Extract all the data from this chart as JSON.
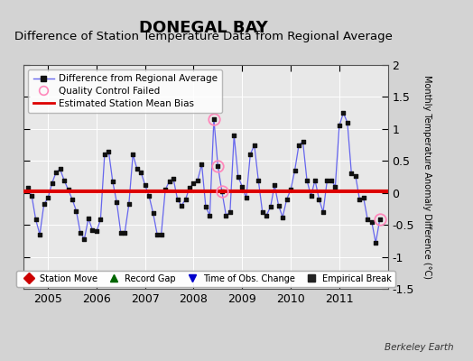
{
  "title": "DONEGAL BAY",
  "subtitle": "Difference of Station Temperature Data from Regional Average",
  "ylabel": "Monthly Temperature Anomaly Difference (°C)",
  "bias": 0.02,
  "ylim": [
    -1.5,
    2.0
  ],
  "yticks": [
    -1.5,
    -1.0,
    -0.5,
    0.0,
    0.5,
    1.0,
    1.5,
    2.0
  ],
  "ytick_labels": [
    "-1.5",
    "-1",
    "-0.5",
    "0",
    "0.5",
    "1",
    "1.5",
    "2"
  ],
  "xlim": [
    2004.5,
    2012.0
  ],
  "xticks": [
    2005,
    2006,
    2007,
    2008,
    2009,
    2010,
    2011
  ],
  "background_color": "#e8e8e8",
  "fig_background_color": "#d3d3d3",
  "line_color": "#6666ee",
  "marker_color": "#111111",
  "bias_color": "#dd0000",
  "qc_color": "#ff88bb",
  "title_fontsize": 13,
  "subtitle_fontsize": 9.5,
  "ylabel_fontsize": 7,
  "tick_fontsize": 9,
  "watermark": "Berkeley Earth",
  "data": [
    [
      2004.583,
      0.08
    ],
    [
      2004.667,
      -0.05
    ],
    [
      2004.75,
      -0.42
    ],
    [
      2004.833,
      -0.65
    ],
    [
      2004.917,
      -0.18
    ],
    [
      2005.0,
      -0.08
    ],
    [
      2005.083,
      0.15
    ],
    [
      2005.167,
      0.32
    ],
    [
      2005.25,
      0.37
    ],
    [
      2005.333,
      0.2
    ],
    [
      2005.417,
      0.05
    ],
    [
      2005.5,
      -0.1
    ],
    [
      2005.583,
      -0.28
    ],
    [
      2005.667,
      -0.62
    ],
    [
      2005.75,
      -0.72
    ],
    [
      2005.833,
      -0.4
    ],
    [
      2005.917,
      -0.58
    ],
    [
      2006.0,
      -0.6
    ],
    [
      2006.083,
      -0.42
    ],
    [
      2006.167,
      0.6
    ],
    [
      2006.25,
      0.65
    ],
    [
      2006.333,
      0.18
    ],
    [
      2006.417,
      -0.15
    ],
    [
      2006.5,
      -0.62
    ],
    [
      2006.583,
      -0.62
    ],
    [
      2006.667,
      -0.18
    ],
    [
      2006.75,
      0.6
    ],
    [
      2006.833,
      0.38
    ],
    [
      2006.917,
      0.32
    ],
    [
      2007.0,
      0.12
    ],
    [
      2007.083,
      -0.05
    ],
    [
      2007.167,
      -0.32
    ],
    [
      2007.25,
      -0.65
    ],
    [
      2007.333,
      -0.65
    ],
    [
      2007.417,
      0.05
    ],
    [
      2007.5,
      0.18
    ],
    [
      2007.583,
      0.22
    ],
    [
      2007.667,
      -0.1
    ],
    [
      2007.75,
      -0.2
    ],
    [
      2007.833,
      -0.1
    ],
    [
      2007.917,
      0.08
    ],
    [
      2008.0,
      0.15
    ],
    [
      2008.083,
      0.2
    ],
    [
      2008.167,
      0.45
    ],
    [
      2008.25,
      -0.22
    ],
    [
      2008.333,
      -0.35
    ],
    [
      2008.417,
      1.15
    ],
    [
      2008.5,
      0.42
    ],
    [
      2008.583,
      0.02
    ],
    [
      2008.667,
      -0.35
    ],
    [
      2008.75,
      -0.3
    ],
    [
      2008.833,
      0.9
    ],
    [
      2008.917,
      0.25
    ],
    [
      2009.0,
      0.1
    ],
    [
      2009.083,
      -0.08
    ],
    [
      2009.167,
      0.6
    ],
    [
      2009.25,
      0.75
    ],
    [
      2009.333,
      0.2
    ],
    [
      2009.417,
      -0.3
    ],
    [
      2009.5,
      -0.35
    ],
    [
      2009.583,
      -0.22
    ],
    [
      2009.667,
      0.12
    ],
    [
      2009.75,
      -0.2
    ],
    [
      2009.833,
      -0.38
    ],
    [
      2009.917,
      -0.1
    ],
    [
      2010.0,
      0.05
    ],
    [
      2010.083,
      0.35
    ],
    [
      2010.167,
      0.75
    ],
    [
      2010.25,
      0.8
    ],
    [
      2010.333,
      0.2
    ],
    [
      2010.417,
      -0.05
    ],
    [
      2010.5,
      0.2
    ],
    [
      2010.583,
      -0.1
    ],
    [
      2010.667,
      -0.3
    ],
    [
      2010.75,
      0.2
    ],
    [
      2010.833,
      0.2
    ],
    [
      2010.917,
      0.1
    ],
    [
      2011.0,
      1.05
    ],
    [
      2011.083,
      1.25
    ],
    [
      2011.167,
      1.1
    ],
    [
      2011.25,
      0.3
    ],
    [
      2011.333,
      0.27
    ],
    [
      2011.417,
      -0.1
    ],
    [
      2011.5,
      -0.08
    ],
    [
      2011.583,
      -0.42
    ],
    [
      2011.667,
      -0.45
    ],
    [
      2011.75,
      -0.78
    ],
    [
      2011.833,
      -0.42
    ]
  ],
  "qc_points": [
    2008.417,
    2008.5,
    2008.583,
    2011.833
  ],
  "bottom_legend": [
    {
      "marker": "D",
      "color": "#cc0000",
      "label": "Station Move"
    },
    {
      "marker": "^",
      "color": "#006600",
      "label": "Record Gap"
    },
    {
      "marker": "v",
      "color": "#0000cc",
      "label": "Time of Obs. Change"
    },
    {
      "marker": "s",
      "color": "#222222",
      "label": "Empirical Break"
    }
  ]
}
